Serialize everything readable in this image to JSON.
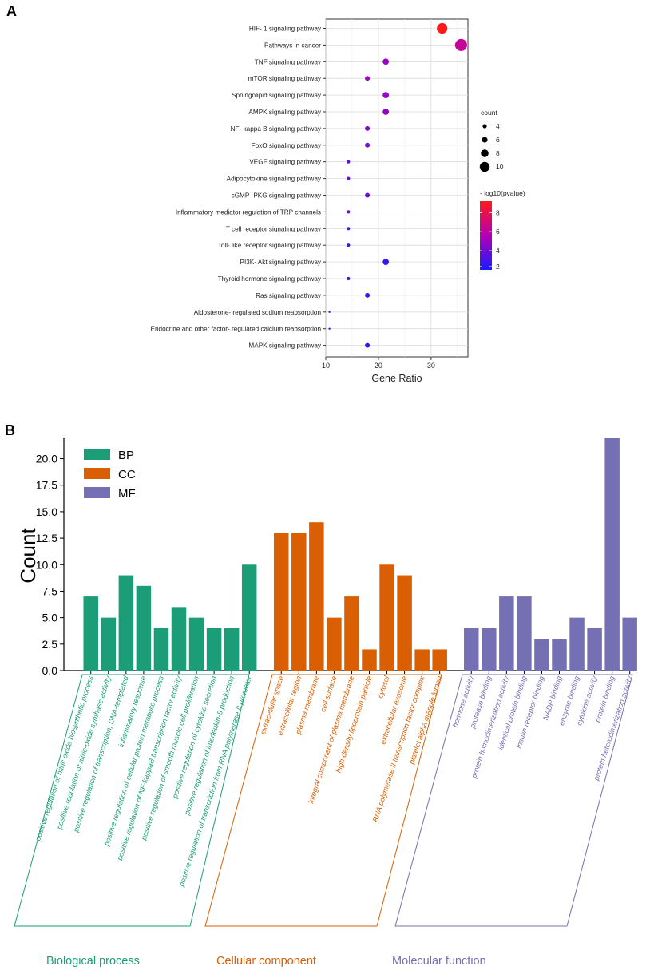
{
  "panel_labels": {
    "a": "A",
    "b": "B"
  },
  "colors": {
    "bp": "#1b9e77",
    "cc": "#d95f02",
    "mf": "#7570b3"
  },
  "chart_data": [
    {
      "type": "scatter",
      "subtype": "bubble",
      "panel": "A",
      "xlabel": "Gene Ratio",
      "xlim": [
        10,
        37
      ],
      "xticks": [
        10,
        20,
        30
      ],
      "grid": true,
      "categories": [
        "HIF- 1 signaling pathway",
        "Pathways in cancer",
        "TNF signaling pathway",
        "mTOR signaling pathway",
        "Sphingolipid signaling pathway",
        "AMPK signaling pathway",
        "NF- kappa B signaling pathway",
        "FoxO signaling pathway",
        "VEGF signaling pathway",
        "Adipocytokine signaling pathway",
        "cGMP- PKG signaling pathway",
        "Inflammatory mediator regulation of TRP channels",
        "T cell receptor signaling pathway",
        "Toll- like receptor signaling pathway",
        "PI3K- Akt signaling pathway",
        "Thyroid hormone signaling pathway",
        "Ras signaling pathway",
        "Aldosterone- regulated sodium reabsorption",
        "Endocrine and other factor- regulated calcium reabsorption",
        "MAPK signaling pathway"
      ],
      "x": [
        32.1,
        35.7,
        21.4,
        17.9,
        21.4,
        21.4,
        17.9,
        17.9,
        14.3,
        14.3,
        17.9,
        14.3,
        14.3,
        14.3,
        21.4,
        14.3,
        17.9,
        10.7,
        10.7,
        17.9
      ],
      "count": [
        9,
        10,
        6,
        5,
        6,
        6,
        5,
        5,
        4,
        4,
        5,
        4,
        4,
        4,
        6,
        4,
        5,
        3,
        3,
        5
      ],
      "neg_log10_p": [
        9.2,
        6.3,
        5.0,
        5.0,
        4.8,
        4.8,
        4.3,
        4.2,
        3.8,
        3.8,
        3.8,
        3.4,
        3.2,
        3.0,
        2.6,
        3.0,
        2.6,
        2.5,
        2.5,
        2.2
      ],
      "size_legend": {
        "title": "count",
        "values": [
          4,
          6,
          8,
          10
        ]
      },
      "color_legend": {
        "title": "- log10(pvalue)",
        "ticks": [
          2,
          4,
          6,
          8
        ],
        "range": [
          2,
          9.2
        ],
        "low": "#1a1aff",
        "mid": "#b300b3",
        "high": "#ff1a1a"
      }
    },
    {
      "type": "bar",
      "panel": "B",
      "ylabel": "Count",
      "ylim": [
        0,
        22
      ],
      "yticks": [
        "0.0",
        "2.5",
        "5.0",
        "7.5",
        "10.0",
        "12.5",
        "15.0",
        "17.5",
        "20.0"
      ],
      "legend": [
        "BP",
        "CC",
        "MF"
      ],
      "legend_position": "top-left",
      "series": [
        {
          "name": "BP",
          "group_label": "Biological process",
          "categories": [
            "positive regulation of nitric oxide biosynthetic process",
            "positive regulation of nitric-oxide synthase activity",
            "positive regulation of transcription, DNA-templated",
            "inflammatory response",
            "positive regulation of cellular protein metabolic process",
            "positive regulation of NF-kappaB transcription factor activity",
            "positive regulation of smooth muscle cell proliferation",
            "positive regulation of cytokine secretion",
            "positive regulation of interleukin-8 production",
            "positive regulation of transcription from RNA polymerase II promoter"
          ],
          "values": [
            7,
            5,
            9,
            8,
            4,
            6,
            5,
            4,
            4,
            10
          ]
        },
        {
          "name": "CC",
          "group_label": "Cellular component",
          "categories": [
            "extracellular space",
            "extracellular region",
            "plasma membrane",
            "cell surface",
            "integral component of plasma membrane",
            "high-density lipoprotein particle",
            "cytosol",
            "extracellular exosome",
            "RNA polymerase II transcription factor complex",
            "platelet alpha granule lumen"
          ],
          "values": [
            13,
            13,
            14,
            5,
            7,
            2,
            10,
            9,
            2,
            2
          ]
        },
        {
          "name": "MF",
          "group_label": "Molecular function",
          "categories": [
            "hormone activity",
            "protease binding",
            "protein homodimerization activity",
            "identical protein binding",
            "insulin receptor binding",
            "NADP binding",
            "enzyme binding",
            "cytokine activity",
            "protein binding",
            "protein heterodimerization activity"
          ],
          "values": [
            4,
            4,
            7,
            7,
            3,
            3,
            5,
            4,
            22,
            5
          ]
        }
      ]
    }
  ]
}
